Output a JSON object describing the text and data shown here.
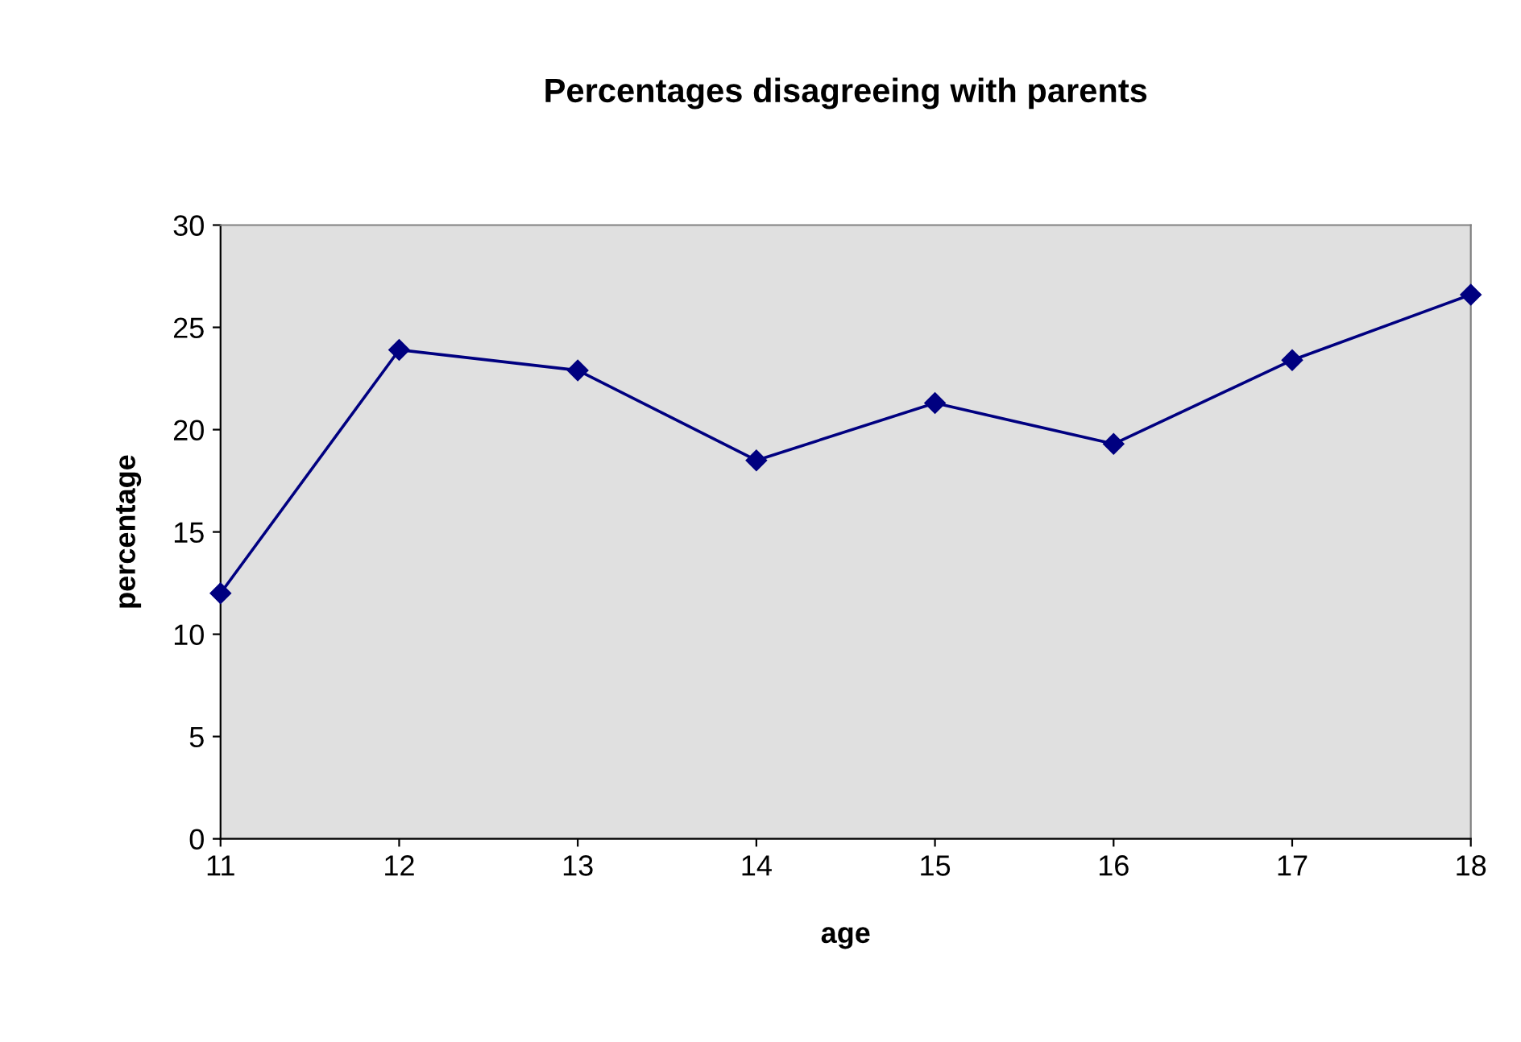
{
  "chart_data": {
    "type": "line",
    "title": "Percentages disagreeing with parents",
    "xlabel": "age",
    "ylabel": "percentage",
    "categories": [
      "11",
      "12",
      "13",
      "14",
      "15",
      "16",
      "17",
      "18"
    ],
    "series": [
      {
        "color": "#000080",
        "values": [
          12,
          23.9,
          22.9,
          18.5,
          21.3,
          19.3,
          23.4,
          26.6
        ]
      }
    ],
    "ylim": [
      0,
      30
    ],
    "yticks": [
      0,
      5,
      10,
      15,
      20,
      25,
      30
    ],
    "marker": "diamond",
    "line_style": "solid",
    "grid": false,
    "legend": false
  }
}
